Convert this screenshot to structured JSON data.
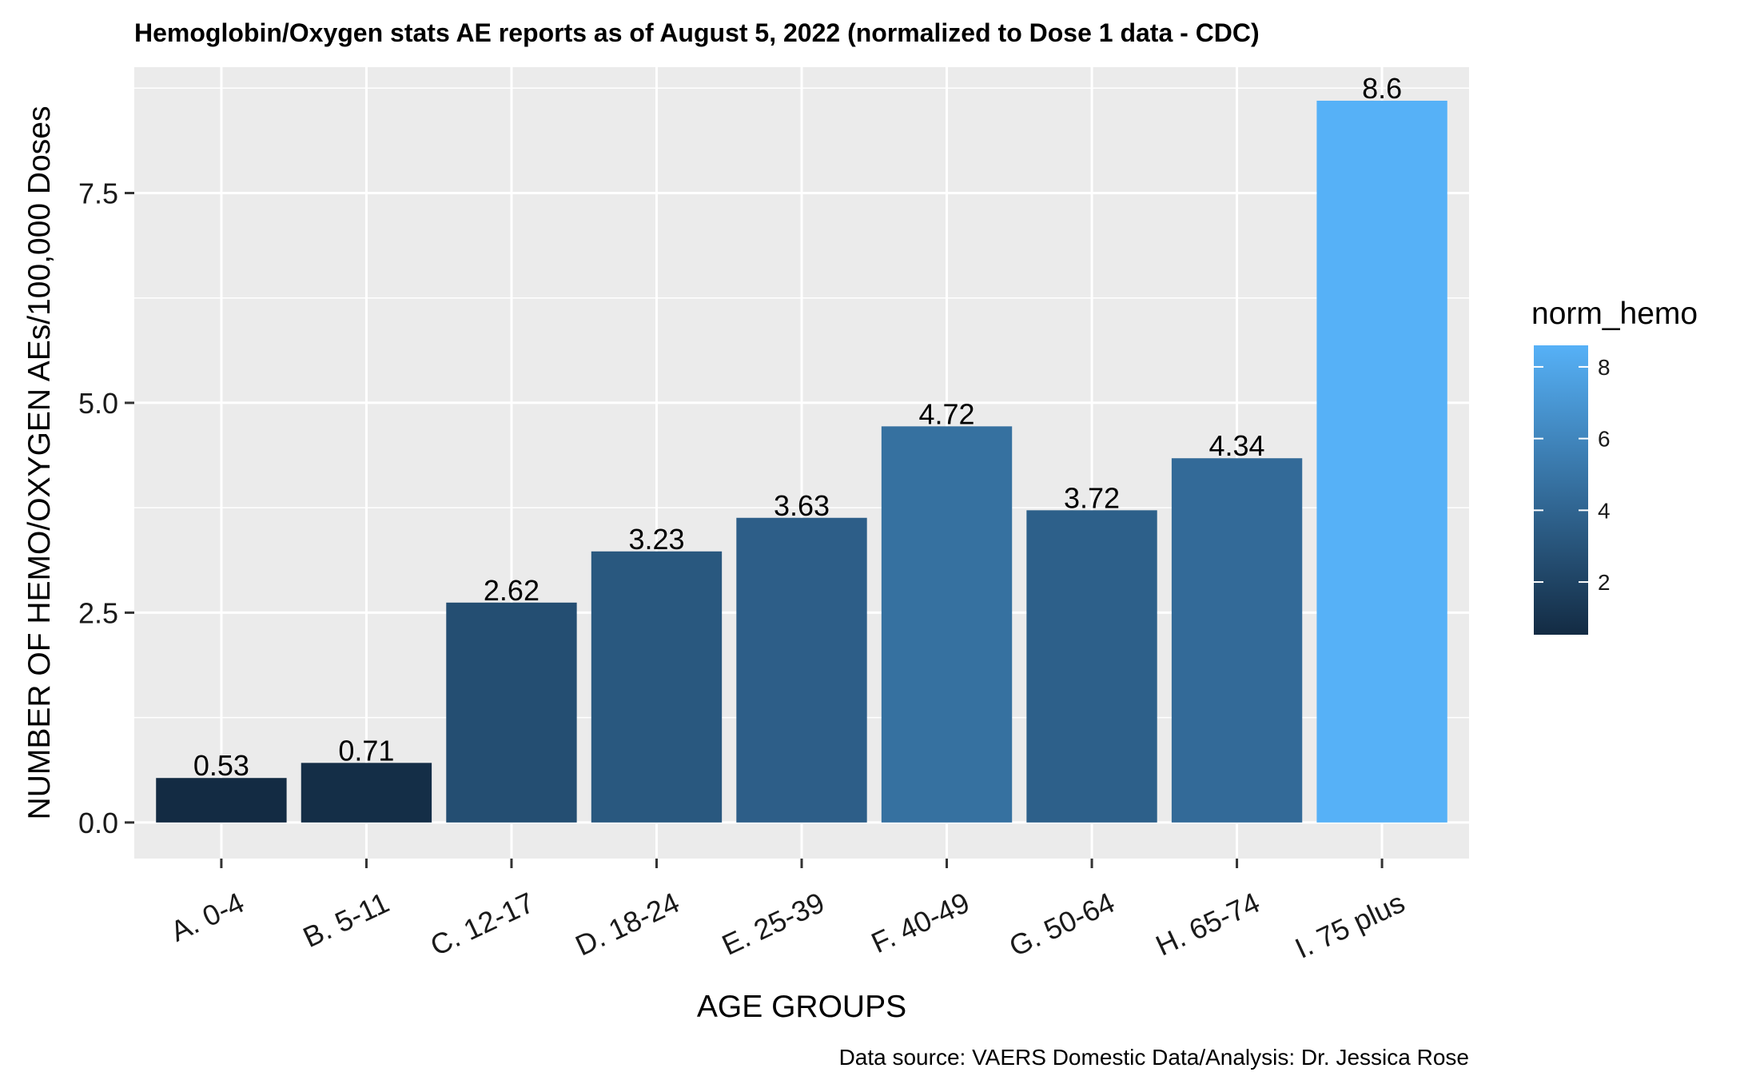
{
  "chart_data": {
    "type": "bar",
    "title": "Hemoglobin/Oxygen stats AE reports as of August 5, 2022 (normalized to Dose 1 data - CDC)",
    "xlabel": "AGE GROUPS",
    "ylabel": "NUMBER OF HEMO/OXYGEN AEs/100,000 Doses",
    "caption": "Data source: VAERS Domestic Data/Analysis: Dr. Jessica Rose",
    "categories": [
      "A. 0-4",
      "B. 5-11",
      "C. 12-17",
      "D. 18-24",
      "E. 25-39",
      "F. 40-49",
      "G. 50-64",
      "H. 65-74",
      "I. 75 plus"
    ],
    "values": [
      0.53,
      0.71,
      2.62,
      3.23,
      3.63,
      4.72,
      3.72,
      4.34,
      8.6
    ],
    "value_labels": [
      "0.53",
      "0.71",
      "2.62",
      "3.23",
      "3.63",
      "4.72",
      "3.72",
      "4.34",
      "8.6"
    ],
    "ylim": [
      -0.43,
      9.0
    ],
    "yticks": [
      0.0,
      2.5,
      5.0,
      7.5
    ],
    "ytick_labels": [
      "0.0",
      "2.5",
      "5.0",
      "7.5"
    ],
    "grid": true,
    "background": "#EBEBEB",
    "gridline_color": "#FFFFFF",
    "color_scale": {
      "low_color": "#132B43",
      "high_color": "#56B1F7",
      "domain": [
        0.53,
        8.6
      ]
    },
    "legend": {
      "title": "norm_hemo",
      "placement": "right",
      "ticks": [
        2,
        4,
        6,
        8
      ],
      "tick_labels": [
        "2",
        "4",
        "6",
        "8"
      ]
    }
  }
}
